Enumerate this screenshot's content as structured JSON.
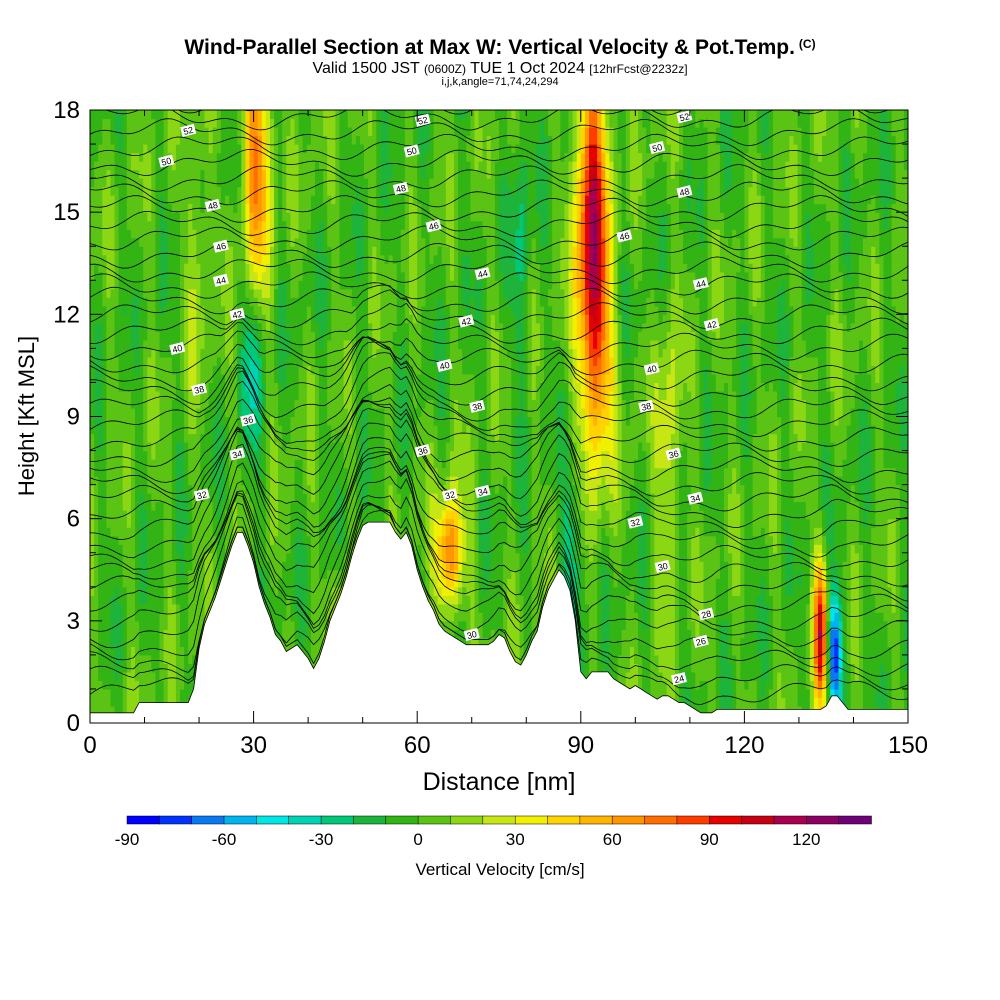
{
  "title": {
    "main": "Wind-Parallel Section at Max W: Vertical Velocity & Pot.Temp.",
    "copyright": "(C)",
    "valid_prefix": "Valid 1500 JST",
    "valid_utc": "(0600Z)",
    "valid_date": "TUE 1 Oct 2024",
    "forecast": "[12hrFcst@2232z]",
    "indices": "i,j,k,angle=71,74,24,294"
  },
  "colors": {
    "terrain": "#ffffff",
    "background_field": "#5ccc14",
    "contour": "#000000",
    "colorbar": [
      "#0000ff",
      "#0033ff",
      "#0a78f0",
      "#00b4f0",
      "#00e6e6",
      "#00d2b4",
      "#00c878",
      "#1eb43c",
      "#32b414",
      "#5ac314",
      "#8cd714",
      "#c8e614",
      "#f0f000",
      "#ffd200",
      "#ffb400",
      "#ff9600",
      "#ff6e00",
      "#ff3c00",
      "#e60000",
      "#c80014",
      "#aa0050",
      "#8c0064",
      "#6e0078"
    ]
  },
  "chart_data": {
    "type": "heatmap",
    "title": "Wind-Parallel Section at Max W: Vertical Velocity & Pot.Temp.",
    "xlabel": "Distance [nm]",
    "ylabel": "Height [Kft MSL]",
    "xlim": [
      0,
      150
    ],
    "ylim": [
      0,
      18
    ],
    "x_ticks": [
      0,
      30,
      60,
      90,
      120,
      150
    ],
    "y_ticks": [
      0,
      3,
      6,
      9,
      12,
      15,
      18
    ],
    "colorbar": {
      "label": "Vertical Velocity [cm/s]",
      "range": [
        -90,
        140
      ],
      "ticks": [
        -90,
        -60,
        -30,
        0,
        30,
        60,
        90,
        120
      ]
    },
    "terrain_profile": {
      "x": [
        0,
        8,
        9,
        18,
        19,
        20,
        21,
        22,
        23,
        24,
        25,
        26,
        27,
        28,
        29,
        30,
        31,
        32,
        33,
        34,
        35,
        36,
        38,
        40,
        41,
        42,
        43,
        44,
        45,
        46,
        47,
        48,
        49,
        50,
        51,
        52,
        53,
        54,
        55,
        56,
        57,
        58,
        59,
        60,
        61,
        62,
        63,
        64,
        65,
        66,
        67,
        68,
        69,
        70,
        71,
        72,
        73,
        74,
        75,
        76,
        77,
        78,
        79,
        80,
        81,
        82,
        83,
        84,
        85,
        86,
        87,
        88,
        89,
        90,
        91,
        92,
        93,
        94,
        95,
        96,
        97,
        98,
        99,
        100,
        101,
        102,
        103,
        104,
        105,
        106,
        107,
        108,
        109,
        110,
        111,
        112,
        113,
        114,
        115,
        120,
        125,
        130,
        131,
        132,
        133,
        134,
        135,
        136,
        137,
        138,
        139,
        140,
        150
      ],
      "y": [
        0.3,
        0.3,
        0.6,
        0.6,
        1.0,
        2.2,
        2.9,
        3.3,
        3.7,
        4.2,
        4.7,
        5.2,
        5.6,
        5.6,
        5.2,
        4.7,
        4.0,
        3.5,
        3.1,
        2.6,
        2.4,
        2.1,
        2.3,
        1.9,
        1.6,
        1.9,
        2.4,
        3.0,
        3.4,
        3.8,
        4.3,
        4.9,
        5.4,
        5.8,
        5.9,
        5.9,
        5.9,
        5.9,
        5.9,
        5.6,
        5.4,
        5.6,
        5.2,
        4.5,
        4.0,
        3.6,
        3.3,
        2.9,
        2.7,
        2.6,
        2.5,
        2.4,
        2.3,
        2.3,
        2.3,
        2.3,
        2.3,
        2.4,
        2.6,
        2.5,
        2.1,
        1.8,
        1.7,
        2.0,
        2.4,
        2.7,
        3.4,
        3.9,
        4.2,
        4.5,
        4.3,
        3.9,
        3.0,
        1.5,
        1.3,
        1.5,
        1.5,
        1.5,
        1.5,
        1.3,
        1.2,
        1.1,
        1.0,
        1.1,
        1.0,
        0.9,
        0.8,
        0.7,
        0.8,
        0.8,
        0.7,
        0.6,
        0.6,
        0.5,
        0.4,
        0.3,
        0.3,
        0.3,
        0.4,
        0.4,
        0.4,
        0.4,
        0.4,
        0.4,
        0.4,
        0.4,
        0.5,
        0.8,
        0.8,
        0.6,
        0.4,
        0.4,
        0.4
      ],
      "note_x_unit": "nm",
      "note_y_unit": "kft"
    },
    "velocity_features": [
      {
        "x": 30.5,
        "y": 16.5,
        "sx": 1.8,
        "sy": 3.5,
        "value": 70
      },
      {
        "x": 30.0,
        "y": 11.0,
        "sx": 1.5,
        "sy": 2.2,
        "value": -40
      },
      {
        "x": 66.0,
        "y": 5.0,
        "sx": 1.8,
        "sy": 1.2,
        "value": 75
      },
      {
        "x": 92.0,
        "y": 15.0,
        "sx": 2.0,
        "sy": 3.2,
        "value": 100
      },
      {
        "x": 93.0,
        "y": 10.5,
        "sx": 2.2,
        "sy": 2.5,
        "value": 55
      },
      {
        "x": 88.5,
        "y": 5.0,
        "sx": 1.3,
        "sy": 2.0,
        "value": -30
      },
      {
        "x": 134.0,
        "y": 2.7,
        "sx": 0.9,
        "sy": 1.5,
        "value": 100
      },
      {
        "x": 136.5,
        "y": 2.0,
        "sx": 0.9,
        "sy": 1.3,
        "value": -85
      },
      {
        "x": 106.0,
        "y": 8.0,
        "sx": 1.4,
        "sy": 3.0,
        "value": 30
      },
      {
        "x": 20.0,
        "y": 14.0,
        "sx": 1.5,
        "sy": 3.0,
        "value": 20
      },
      {
        "x": 79.0,
        "y": 14.0,
        "sx": 1.2,
        "sy": 3.0,
        "value": -20
      },
      {
        "x": 46.0,
        "y": 3.0,
        "sx": 1.2,
        "sy": 1.0,
        "value": 35
      }
    ],
    "theta_labels": [
      {
        "x": 18,
        "y": 17.4,
        "text": "52"
      },
      {
        "x": 14,
        "y": 16.5,
        "text": "50"
      },
      {
        "x": 22.5,
        "y": 15.2,
        "text": "48"
      },
      {
        "x": 24,
        "y": 14.0,
        "text": "46"
      },
      {
        "x": 24,
        "y": 13.0,
        "text": "44"
      },
      {
        "x": 27,
        "y": 12.0,
        "text": "42"
      },
      {
        "x": 16,
        "y": 11.0,
        "text": "40"
      },
      {
        "x": 20,
        "y": 9.8,
        "text": "38"
      },
      {
        "x": 29,
        "y": 8.9,
        "text": "36"
      },
      {
        "x": 27,
        "y": 7.9,
        "text": "34"
      },
      {
        "x": 20.5,
        "y": 6.7,
        "text": "32"
      },
      {
        "x": 61,
        "y": 17.7,
        "text": "52"
      },
      {
        "x": 59,
        "y": 16.8,
        "text": "50"
      },
      {
        "x": 57,
        "y": 15.7,
        "text": "48"
      },
      {
        "x": 63,
        "y": 14.6,
        "text": "46"
      },
      {
        "x": 72,
        "y": 13.2,
        "text": "44"
      },
      {
        "x": 69,
        "y": 11.8,
        "text": "42"
      },
      {
        "x": 65,
        "y": 10.5,
        "text": "40"
      },
      {
        "x": 71,
        "y": 9.3,
        "text": "38"
      },
      {
        "x": 61,
        "y": 8.0,
        "text": "36"
      },
      {
        "x": 72,
        "y": 6.8,
        "text": "34"
      },
      {
        "x": 66,
        "y": 6.7,
        "text": "32"
      },
      {
        "x": 70,
        "y": 2.6,
        "text": "30"
      },
      {
        "x": 109,
        "y": 17.8,
        "text": "52"
      },
      {
        "x": 104,
        "y": 16.9,
        "text": "50"
      },
      {
        "x": 109,
        "y": 15.6,
        "text": "48"
      },
      {
        "x": 98,
        "y": 14.3,
        "text": "46"
      },
      {
        "x": 112,
        "y": 12.9,
        "text": "44"
      },
      {
        "x": 114,
        "y": 11.7,
        "text": "42"
      },
      {
        "x": 103,
        "y": 10.4,
        "text": "40"
      },
      {
        "x": 102,
        "y": 9.3,
        "text": "38"
      },
      {
        "x": 107,
        "y": 7.9,
        "text": "36"
      },
      {
        "x": 111,
        "y": 6.6,
        "text": "34"
      },
      {
        "x": 100,
        "y": 5.9,
        "text": "32"
      },
      {
        "x": 105,
        "y": 4.6,
        "text": "30"
      },
      {
        "x": 113,
        "y": 3.2,
        "text": "28"
      },
      {
        "x": 112,
        "y": 2.4,
        "text": "26"
      },
      {
        "x": 108,
        "y": 1.3,
        "text": "24"
      }
    ],
    "theta_isentropes_count": 40
  }
}
